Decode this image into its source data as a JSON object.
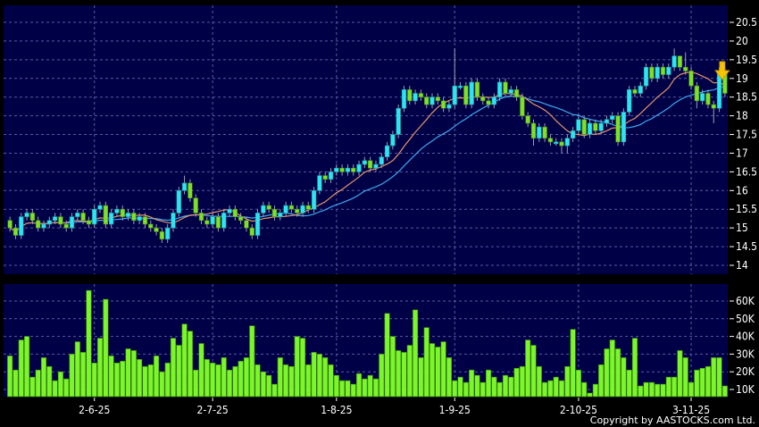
{
  "chart_data": [
    {
      "type": "candlestick",
      "panel": "price",
      "ylim": [
        14,
        20.5
      ],
      "yticks": [
        "20.5",
        "20",
        "19.5",
        "19",
        "18.5",
        "18",
        "17.5",
        "17",
        "16.5",
        "16",
        "15.5",
        "15",
        "14.5",
        "14"
      ],
      "grid": true,
      "colors": {
        "up": "#2fe3f0",
        "down": "#7fe02a",
        "ma_short": "#e8956a",
        "ma_long": "#3fa8f0",
        "background": "#000046",
        "grid": "#5a5aa0",
        "arrow": "#f5c400"
      },
      "ohlc": [
        [
          15.2,
          15.3,
          14.9,
          15.0
        ],
        [
          15.0,
          15.1,
          14.7,
          14.8
        ],
        [
          14.8,
          15.4,
          14.7,
          15.3
        ],
        [
          15.3,
          15.5,
          15.2,
          15.4
        ],
        [
          15.4,
          15.5,
          15.1,
          15.2
        ],
        [
          15.2,
          15.3,
          14.9,
          15.0
        ],
        [
          15.0,
          15.2,
          14.9,
          15.1
        ],
        [
          15.1,
          15.3,
          15.0,
          15.2
        ],
        [
          15.2,
          15.4,
          15.1,
          15.3
        ],
        [
          15.3,
          15.4,
          15.0,
          15.1
        ],
        [
          15.1,
          15.2,
          14.9,
          15.0
        ],
        [
          15.0,
          15.4,
          14.9,
          15.3
        ],
        [
          15.3,
          15.5,
          15.2,
          15.4
        ],
        [
          15.4,
          15.5,
          15.1,
          15.2
        ],
        [
          15.2,
          15.3,
          15.0,
          15.1
        ],
        [
          15.1,
          15.6,
          15.0,
          15.5
        ],
        [
          15.5,
          15.7,
          15.4,
          15.6
        ],
        [
          15.6,
          15.7,
          15.0,
          15.1
        ],
        [
          15.1,
          15.5,
          15.0,
          15.4
        ],
        [
          15.4,
          15.6,
          15.3,
          15.5
        ],
        [
          15.5,
          15.6,
          15.2,
          15.3
        ],
        [
          15.3,
          15.5,
          15.2,
          15.4
        ],
        [
          15.4,
          15.5,
          15.1,
          15.2
        ],
        [
          15.2,
          15.4,
          15.1,
          15.3
        ],
        [
          15.3,
          15.4,
          15.0,
          15.1
        ],
        [
          15.1,
          15.2,
          14.9,
          15.0
        ],
        [
          15.0,
          15.1,
          14.8,
          14.9
        ],
        [
          14.9,
          15.0,
          14.6,
          14.7
        ],
        [
          14.7,
          15.1,
          14.6,
          15.0
        ],
        [
          15.0,
          15.5,
          14.9,
          15.4
        ],
        [
          15.4,
          16.1,
          15.3,
          16.0
        ],
        [
          16.0,
          16.4,
          15.9,
          16.2
        ],
        [
          16.2,
          16.3,
          15.7,
          15.8
        ],
        [
          15.8,
          15.9,
          15.3,
          15.4
        ],
        [
          15.4,
          15.5,
          15.1,
          15.2
        ],
        [
          15.2,
          15.3,
          15.0,
          15.1
        ],
        [
          15.1,
          15.4,
          15.0,
          15.3
        ],
        [
          15.3,
          15.4,
          14.9,
          15.0
        ],
        [
          15.0,
          15.5,
          14.9,
          15.4
        ],
        [
          15.4,
          15.6,
          15.3,
          15.5
        ],
        [
          15.5,
          15.6,
          15.2,
          15.3
        ],
        [
          15.3,
          15.4,
          15.1,
          15.2
        ],
        [
          15.2,
          15.3,
          14.9,
          15.0
        ],
        [
          15.0,
          15.1,
          14.7,
          14.8
        ],
        [
          14.8,
          15.5,
          14.7,
          15.4
        ],
        [
          15.4,
          15.7,
          15.3,
          15.6
        ],
        [
          15.6,
          15.7,
          15.4,
          15.5
        ],
        [
          15.5,
          15.6,
          15.2,
          15.3
        ],
        [
          15.3,
          15.5,
          15.2,
          15.4
        ],
        [
          15.4,
          15.7,
          15.3,
          15.6
        ],
        [
          15.6,
          15.7,
          15.4,
          15.5
        ],
        [
          15.5,
          15.6,
          15.3,
          15.4
        ],
        [
          15.4,
          15.7,
          15.3,
          15.6
        ],
        [
          15.6,
          15.7,
          15.4,
          15.5
        ],
        [
          15.5,
          16.1,
          15.4,
          16.0
        ],
        [
          16.0,
          16.5,
          15.9,
          16.4
        ],
        [
          16.4,
          16.5,
          16.2,
          16.3
        ],
        [
          16.3,
          16.6,
          16.2,
          16.5
        ],
        [
          16.5,
          16.7,
          16.4,
          16.6
        ],
        [
          16.6,
          16.7,
          16.4,
          16.5
        ],
        [
          16.5,
          16.7,
          16.4,
          16.6
        ],
        [
          16.6,
          16.7,
          16.4,
          16.5
        ],
        [
          16.5,
          16.8,
          16.4,
          16.7
        ],
        [
          16.7,
          16.9,
          16.6,
          16.8
        ],
        [
          16.8,
          16.9,
          16.5,
          16.6
        ],
        [
          16.6,
          16.8,
          16.5,
          16.7
        ],
        [
          16.7,
          17.0,
          16.6,
          16.9
        ],
        [
          16.9,
          17.3,
          16.8,
          17.2
        ],
        [
          17.2,
          17.6,
          17.1,
          17.5
        ],
        [
          17.5,
          18.3,
          17.4,
          18.2
        ],
        [
          18.2,
          18.8,
          18.1,
          18.7
        ],
        [
          18.7,
          18.8,
          18.3,
          18.4
        ],
        [
          18.4,
          18.7,
          18.3,
          18.6
        ],
        [
          18.6,
          18.7,
          18.4,
          18.5
        ],
        [
          18.5,
          18.6,
          18.2,
          18.3
        ],
        [
          18.3,
          18.6,
          18.2,
          18.5
        ],
        [
          18.5,
          18.6,
          18.3,
          18.4
        ],
        [
          18.4,
          18.5,
          18.1,
          18.2
        ],
        [
          18.2,
          18.4,
          18.1,
          18.3
        ],
        [
          18.3,
          19.8,
          18.2,
          18.8
        ],
        [
          18.8,
          18.9,
          18.7,
          18.8
        ],
        [
          18.8,
          18.9,
          18.2,
          18.3
        ],
        [
          18.3,
          19.0,
          18.2,
          18.9
        ],
        [
          18.9,
          19.0,
          18.4,
          18.5
        ],
        [
          18.5,
          18.6,
          18.3,
          18.4
        ],
        [
          18.4,
          18.5,
          18.2,
          18.3
        ],
        [
          18.3,
          18.6,
          18.2,
          18.5
        ],
        [
          18.5,
          19.0,
          18.4,
          18.9
        ],
        [
          18.9,
          19.0,
          18.5,
          18.6
        ],
        [
          18.6,
          18.8,
          18.5,
          18.7
        ],
        [
          18.7,
          18.8,
          18.4,
          18.5
        ],
        [
          18.5,
          18.6,
          17.9,
          18.0
        ],
        [
          18.0,
          18.1,
          17.7,
          17.8
        ],
        [
          17.8,
          17.9,
          17.2,
          17.4
        ],
        [
          17.4,
          17.8,
          17.3,
          17.7
        ],
        [
          17.7,
          17.8,
          17.3,
          17.4
        ],
        [
          17.4,
          17.5,
          17.2,
          17.3
        ],
        [
          17.3,
          17.4,
          17.2,
          17.3
        ],
        [
          17.3,
          17.4,
          17.0,
          17.2
        ],
        [
          17.2,
          17.5,
          17.0,
          17.4
        ],
        [
          17.4,
          17.7,
          17.3,
          17.6
        ],
        [
          17.6,
          18.0,
          17.5,
          17.9
        ],
        [
          17.9,
          18.0,
          17.4,
          17.5
        ],
        [
          17.5,
          17.9,
          17.4,
          17.8
        ],
        [
          17.8,
          17.9,
          17.5,
          17.6
        ],
        [
          17.6,
          17.9,
          17.5,
          17.8
        ],
        [
          17.8,
          18.0,
          17.7,
          17.9
        ],
        [
          17.9,
          18.1,
          17.8,
          18.0
        ],
        [
          18.0,
          18.1,
          17.2,
          17.3
        ],
        [
          17.3,
          18.2,
          17.2,
          18.1
        ],
        [
          18.1,
          18.8,
          18.0,
          18.7
        ],
        [
          18.7,
          18.8,
          18.5,
          18.6
        ],
        [
          18.6,
          18.9,
          18.5,
          18.8
        ],
        [
          18.8,
          19.4,
          18.7,
          19.3
        ],
        [
          19.3,
          19.4,
          18.9,
          19.0
        ],
        [
          19.0,
          19.4,
          18.9,
          19.3
        ],
        [
          19.3,
          19.4,
          19.0,
          19.1
        ],
        [
          19.1,
          19.4,
          19.0,
          19.3
        ],
        [
          19.3,
          19.8,
          19.2,
          19.6
        ],
        [
          19.6,
          19.6,
          19.2,
          19.3
        ],
        [
          19.3,
          19.7,
          19.1,
          19.2
        ],
        [
          19.2,
          19.3,
          18.7,
          18.8
        ],
        [
          18.8,
          18.9,
          18.2,
          18.4
        ],
        [
          18.4,
          18.7,
          18.3,
          18.6
        ],
        [
          18.6,
          18.7,
          18.2,
          18.3
        ],
        [
          18.3,
          18.4,
          17.8,
          18.2
        ],
        [
          18.2,
          19.3,
          18.1,
          19.2
        ],
        [
          19.2,
          19.3,
          18.5,
          18.6
        ]
      ],
      "x_labels": [
        {
          "label": "2-6-25",
          "index": 15
        },
        {
          "label": "2-7-25",
          "index": 36
        },
        {
          "label": "1-8-25",
          "index": 58
        },
        {
          "label": "1-9-25",
          "index": 79
        },
        {
          "label": "2-10-25",
          "index": 101
        },
        {
          "label": "3-11-25",
          "index": 121
        }
      ],
      "annotation": "down-arrow-icon"
    },
    {
      "type": "bar",
      "panel": "volume",
      "ylim": [
        0,
        70000
      ],
      "yticks": [
        "60K",
        "50K",
        "40K",
        "30K",
        "20K",
        "10K"
      ],
      "ytick_values": [
        60000,
        50000,
        40000,
        30000,
        20000,
        10000
      ],
      "grid": true,
      "colors": {
        "bar": "#7cf52a",
        "bar_edge": "#3a8a10"
      },
      "values_k": [
        29,
        21,
        38,
        40,
        17,
        21,
        28,
        23,
        15,
        20,
        16,
        30,
        37,
        31,
        66,
        25,
        39,
        61,
        29,
        25,
        26,
        33,
        32,
        27,
        23,
        24,
        29,
        20,
        25,
        39,
        35,
        47,
        43,
        21,
        36,
        27,
        25,
        24,
        28,
        21,
        23,
        26,
        28,
        46,
        24,
        20,
        18,
        13,
        28,
        24,
        23,
        40,
        39,
        24,
        31,
        30,
        28,
        24,
        18,
        15,
        15,
        13,
        19,
        16,
        18,
        16,
        30,
        53,
        40,
        32,
        31,
        35,
        55,
        28,
        45,
        36,
        34,
        37,
        28,
        15,
        17,
        14,
        21,
        18,
        14,
        21,
        17,
        14,
        18,
        17,
        22,
        23,
        38,
        35,
        23,
        14,
        15,
        17,
        15,
        23,
        44,
        21,
        14,
        8,
        13,
        24,
        33,
        38,
        33,
        28,
        21,
        39,
        12,
        14,
        14,
        13,
        13,
        17,
        17,
        32,
        28,
        14,
        21,
        22,
        23,
        28,
        28,
        12
      ]
    }
  ],
  "footer": {
    "copyright": "Copyright by AASTOCKS.com Ltd."
  }
}
